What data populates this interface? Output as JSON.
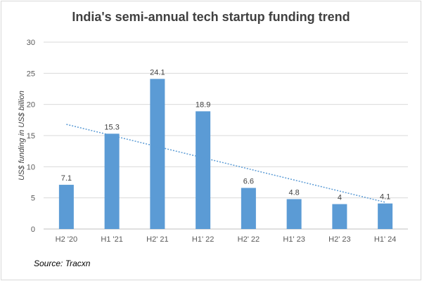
{
  "chart_data": {
    "type": "bar",
    "title": "India's semi-annual tech startup funding trend",
    "categories": [
      "H2 '20",
      "H1 '21",
      "H2' 21",
      "H1' 22",
      "H2' 22",
      "H1' 23",
      "H2' 23",
      "H1' 24"
    ],
    "values": [
      7.1,
      15.3,
      24.1,
      18.9,
      6.6,
      4.8,
      4,
      4.1
    ],
    "data_labels": [
      "7.1",
      "15.3",
      "24.1",
      "18.9",
      "6.6",
      "4.8",
      "4",
      "4.1"
    ],
    "xlabel": "",
    "ylabel": "US$ funding in US$ billion",
    "ylim": [
      0,
      30
    ],
    "yticks": [
      0,
      5,
      10,
      15,
      20,
      25,
      30
    ],
    "grid": true,
    "trendline": {
      "type": "linear",
      "start": 16.8,
      "end": 4.3
    },
    "bar_color": "#5b9bd5",
    "trend_color": "#5b9bd5",
    "source": "Source: Tracxn"
  }
}
